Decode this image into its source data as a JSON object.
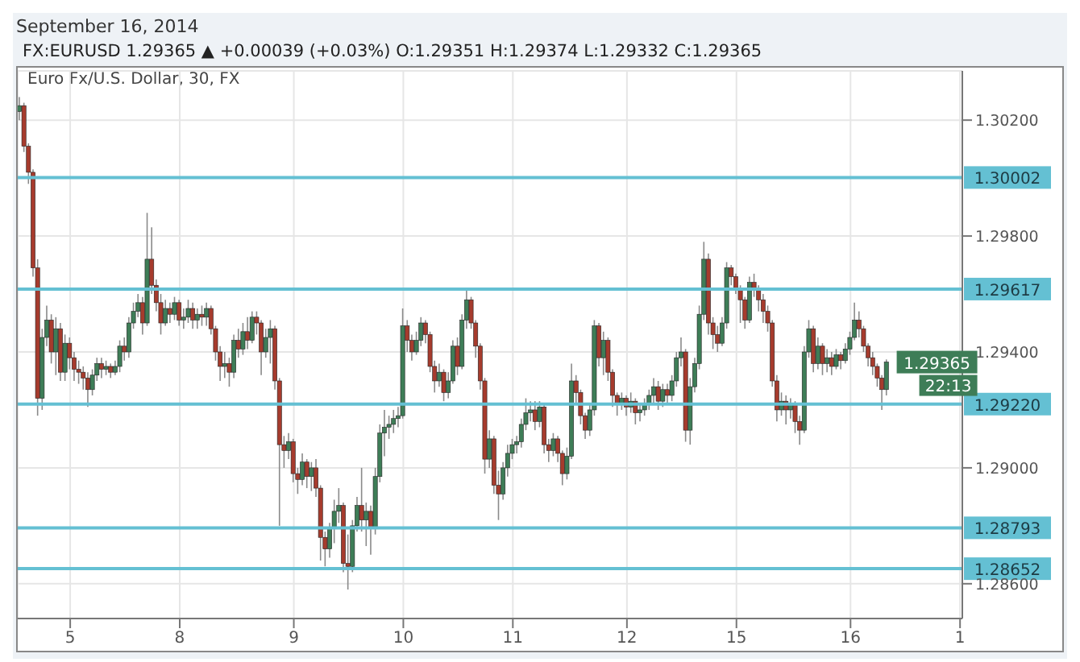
{
  "chart_data": {
    "type": "candlestick",
    "title": "Euro Fx/U.S. Dollar, 30, FX",
    "subtitle": "FX:EURUSD 1.29365 ▲ +0.00039 (+0.03%) O:1.29351 H:1.29374 L:1.29332 C:1.29365",
    "annotations": [
      "September 16, 2014",
      "1.29365",
      "22:13"
    ],
    "colors": [
      "#3e7d57",
      "#a63b2d",
      "#a63b2d",
      "#a63b2d",
      "#a63b2d",
      "#3e7d57",
      "#3e7d57",
      "#a63b2d",
      "#3e7d57",
      "#a63b2d",
      "#3e7d57",
      "#a63b2d",
      "#a63b2d",
      "#a63b2d",
      "#a63b2d",
      "#a63b2d",
      "#3e7d57",
      "#3e7d57",
      "#a63b2d",
      "#3e7d57",
      "#a63b2d",
      "#3e7d57",
      "#3e7d57",
      "#a63b2d",
      "#3e7d57",
      "#3e7d57",
      "#3e7d57",
      "#a63b2d",
      "#3e7d57",
      "#a63b2d",
      "#a63b2d",
      "#a63b2d",
      "#3e7d57",
      "#a63b2d",
      "#3e7d57",
      "#a63b2d",
      "#3e7d57",
      "#3e7d57",
      "#a63b2d",
      "#3e7d57",
      "#a63b2d",
      "#3e7d57",
      "#a63b2d",
      "#a63b2d",
      "#a63b2d",
      "#3e7d57",
      "#a63b2d",
      "#3e7d57",
      "#a63b2d",
      "#3e7d57",
      "#a63b2d",
      "#3e7d57",
      "#a63b2d",
      "#a63b2d",
      "#3e7d57",
      "#3e7d57",
      "#a63b2d",
      "#a63b2d",
      "#a63b2d",
      "#3e7d57",
      "#a63b2d",
      "#a63b2d",
      "#3e7d57",
      "#a63b2d",
      "#3e7d57",
      "#a63b2d",
      "#a63b2d",
      "#a63b2d",
      "#3e7d57",
      "#3e7d57",
      "#3e7d57",
      "#a63b2d",
      "#a63b2d",
      "#3e7d57",
      "#3e7d57",
      "#a63b2d",
      "#3e7d57",
      "#a63b2d",
      "#3e7d57",
      "#3e7d57",
      "#3e7d57",
      "#3e7d57",
      "#3e7d57",
      "#3e7d57",
      "#3e7d57",
      "#a63b2d",
      "#a63b2d",
      "#3e7d57",
      "#3e7d57",
      "#a63b2d",
      "#a63b2d",
      "#a63b2d",
      "#3e7d57",
      "#a63b2d",
      "#3e7d57",
      "#3e7d57",
      "#a63b2d",
      "#3e7d57",
      "#3e7d57",
      "#a63b2d",
      "#a63b2d",
      "#a63b2d",
      "#a63b2d",
      "#3e7d57",
      "#a63b2d",
      "#a63b2d",
      "#3e7d57",
      "#3e7d57",
      "#3e7d57",
      "#3e7d57",
      "#3e7d57",
      "#3e7d57",
      "#3e7d57",
      "#a63b2d",
      "#3e7d57",
      "#a63b2d",
      "#a63b2d",
      "#3e7d57",
      "#a63b2d",
      "#a63b2d",
      "#3e7d57",
      "#3e7d57",
      "#a63b2d",
      "#a63b2d",
      "#a63b2d",
      "#3e7d57",
      "#3e7d57",
      "#a63b2d",
      "#3e7d57",
      "#a63b2d",
      "#a63b2d",
      "#a63b2d",
      "#3e7d57",
      "#a63b2d",
      "#3e7d57",
      "#a63b2d",
      "#3e7d57",
      "#3e7d57",
      "#3e7d57",
      "#3e7d57",
      "#a63b2d",
      "#3e7d57",
      "#a63b2d",
      "#3e7d57",
      "#3e7d57",
      "#3e7d57",
      "#a63b2d",
      "#3e7d57",
      "#3e7d57",
      "#3e7d57",
      "#3e7d57",
      "#a63b2d",
      "#a63b2d",
      "#a63b2d",
      "#3e7d57",
      "#3e7d57",
      "#a63b2d",
      "#a63b2d",
      "#a63b2d",
      "#a63b2d",
      "#3e7d57",
      "#a63b2d",
      "#a63b2d",
      "#a63b2d",
      "#a63b2d",
      "#a63b2d",
      "#a63b2d",
      "#3e7d57",
      "#a63b2d",
      "#3e7d57",
      "#a63b2d",
      "#a63b2d",
      "#3e7d57",
      "#3e7d57",
      "#a63b2d",
      "#3e7d57",
      "#a63b2d",
      "#3e7d57",
      "#a63b2d",
      "#3e7d57",
      "#a63b2d",
      "#3e7d57",
      "#3e7d57",
      "#3e7d57",
      "#a63b2d",
      "#a63b2d",
      "#a63b2d",
      "#a63b2d",
      "#a63b2d",
      "#a63b2d",
      "#3e7d57",
      null,
      null,
      null,
      null,
      null,
      null,
      null,
      null,
      null,
      null,
      null,
      null,
      null,
      null,
      null,
      null
    ],
    "categories": [
      null,
      null,
      null,
      null,
      null,
      null,
      null,
      null,
      null,
      null,
      null,
      "5",
      null,
      null,
      null,
      null,
      null,
      null,
      null,
      null,
      null,
      null,
      null,
      null,
      null,
      null,
      null,
      null,
      null,
      null,
      null,
      null,
      null,
      null,
      null,
      "8",
      null,
      null,
      null,
      null,
      null,
      null,
      null,
      null,
      null,
      null,
      null,
      null,
      null,
      null,
      null,
      null,
      null,
      null,
      null,
      null,
      null,
      null,
      null,
      null,
      "9",
      null,
      null,
      null,
      null,
      null,
      null,
      null,
      null,
      null,
      null,
      null,
      null,
      null,
      null,
      null,
      null,
      null,
      null,
      null,
      null,
      null,
      null,
      null,
      "10",
      null,
      null,
      null,
      null,
      null,
      null,
      null,
      null,
      null,
      null,
      null,
      null,
      null,
      null,
      null,
      null,
      null,
      null,
      null,
      null,
      null,
      null,
      null,
      "11",
      null,
      null,
      null,
      null,
      null,
      null,
      null,
      null,
      null,
      null,
      null,
      null,
      null,
      null,
      null,
      null,
      null,
      null,
      null,
      null,
      null,
      null,
      null,
      null,
      "12",
      null,
      null,
      null,
      null,
      null,
      null,
      null,
      null,
      null,
      null,
      null,
      null,
      null,
      null,
      null,
      null,
      null,
      null,
      null,
      null,
      null,
      null,
      null,
      "15",
      null,
      null,
      null,
      null,
      null,
      null,
      null,
      null,
      null,
      null,
      null,
      null,
      null,
      null,
      null,
      null,
      null,
      null,
      null,
      null,
      null,
      null,
      null,
      null,
      "16",
      null,
      null,
      null,
      null,
      null,
      null,
      null,
      null,
      null,
      null,
      null,
      null,
      null,
      null,
      null,
      null,
      null,
      null,
      null,
      null,
      null,
      null,
      null,
      "1"
    ],
    "ohlc": [
      [
        1.3023,
        1.3028,
        1.302,
        1.3025
      ],
      [
        1.3025,
        1.3026,
        1.3009,
        1.3011
      ],
      [
        1.3011,
        1.3012,
        1.2998,
        1.3002
      ],
      [
        1.3002,
        1.3003,
        1.2966,
        1.2969
      ],
      [
        1.2969,
        1.2972,
        1.2918,
        1.2924
      ],
      [
        1.2924,
        1.2948,
        1.292,
        1.2945
      ],
      [
        1.2945,
        1.2956,
        1.2942,
        1.2951
      ],
      [
        1.2951,
        1.2953,
        1.2936,
        1.294
      ],
      [
        1.294,
        1.2952,
        1.2932,
        1.2948
      ],
      [
        1.2948,
        1.295,
        1.293,
        1.2933
      ],
      [
        1.2933,
        1.2946,
        1.293,
        1.2943
      ],
      [
        1.2943,
        1.2945,
        1.2934,
        1.2938
      ],
      [
        1.2938,
        1.294,
        1.293,
        1.2934
      ],
      [
        1.2934,
        1.2937,
        1.2929,
        1.2933
      ],
      [
        1.2933,
        1.2935,
        1.2927,
        1.2931
      ],
      [
        1.2931,
        1.2933,
        1.2921,
        1.2927
      ],
      [
        1.2927,
        1.2934,
        1.2925,
        1.2932
      ],
      [
        1.2932,
        1.2938,
        1.293,
        1.2936
      ],
      [
        1.2936,
        1.2938,
        1.2931,
        1.2934
      ],
      [
        1.2934,
        1.2937,
        1.2932,
        1.2935
      ],
      [
        1.2935,
        1.2936,
        1.2931,
        1.2933
      ],
      [
        1.2933,
        1.2937,
        1.2932,
        1.2935
      ],
      [
        1.2935,
        1.2944,
        1.2933,
        1.2942
      ],
      [
        1.2942,
        1.2945,
        1.2937,
        1.294
      ],
      [
        1.294,
        1.2952,
        1.2938,
        1.295
      ],
      [
        1.295,
        1.2957,
        1.2948,
        1.2954
      ],
      [
        1.2954,
        1.296,
        1.2952,
        1.2957
      ],
      [
        1.2957,
        1.2959,
        1.2946,
        1.295
      ],
      [
        1.295,
        1.2988,
        1.2949,
        1.2972
      ],
      [
        1.2972,
        1.2983,
        1.296,
        1.2963
      ],
      [
        1.2963,
        1.2965,
        1.2954,
        1.2957
      ],
      [
        1.2957,
        1.296,
        1.2946,
        1.295
      ],
      [
        1.295,
        1.2958,
        1.2949,
        1.2955
      ],
      [
        1.2955,
        1.2957,
        1.295,
        1.2953
      ],
      [
        1.2953,
        1.2959,
        1.2951,
        1.2957
      ],
      [
        1.2957,
        1.2958,
        1.2949,
        1.2951
      ],
      [
        1.2951,
        1.2955,
        1.2948,
        1.2952
      ],
      [
        1.2952,
        1.2958,
        1.295,
        1.2955
      ],
      [
        1.2955,
        1.2957,
        1.2948,
        1.2951
      ],
      [
        1.2951,
        1.2955,
        1.2948,
        1.2953
      ],
      [
        1.2953,
        1.2956,
        1.2949,
        1.2952
      ],
      [
        1.2952,
        1.2957,
        1.2949,
        1.2955
      ],
      [
        1.2955,
        1.2956,
        1.2946,
        1.2948
      ],
      [
        1.2948,
        1.2949,
        1.2937,
        1.294
      ],
      [
        1.294,
        1.2942,
        1.293,
        1.2935
      ],
      [
        1.2935,
        1.294,
        1.2931,
        1.2936
      ],
      [
        1.2936,
        1.2938,
        1.2928,
        1.2933
      ],
      [
        1.2933,
        1.2946,
        1.2931,
        1.2944
      ],
      [
        1.2944,
        1.2948,
        1.2938,
        1.2941
      ],
      [
        1.2941,
        1.295,
        1.2939,
        1.2947
      ],
      [
        1.2947,
        1.2952,
        1.2941,
        1.2944
      ],
      [
        1.2944,
        1.2954,
        1.2943,
        1.2952
      ],
      [
        1.2952,
        1.2954,
        1.2946,
        1.295
      ],
      [
        1.295,
        1.2951,
        1.2932,
        1.294
      ],
      [
        1.294,
        1.2948,
        1.2938,
        1.2945
      ],
      [
        1.2945,
        1.2951,
        1.2936,
        1.2948
      ],
      [
        1.2948,
        1.2949,
        1.2927,
        1.293
      ],
      [
        1.293,
        1.2931,
        1.288,
        1.2908
      ],
      [
        1.2908,
        1.2911,
        1.29,
        1.2906
      ],
      [
        1.2906,
        1.2912,
        1.2903,
        1.2909
      ],
      [
        1.2909,
        1.291,
        1.2895,
        1.2898
      ],
      [
        1.2898,
        1.29,
        1.2891,
        1.2896
      ],
      [
        1.2896,
        1.2905,
        1.2894,
        1.2902
      ],
      [
        1.2902,
        1.2903,
        1.2893,
        1.2897
      ],
      [
        1.2897,
        1.2902,
        1.2892,
        1.29
      ],
      [
        1.29,
        1.2903,
        1.289,
        1.2893
      ],
      [
        1.2893,
        1.2894,
        1.2868,
        1.2876
      ],
      [
        1.2876,
        1.2878,
        1.2866,
        1.2872
      ],
      [
        1.2872,
        1.2881,
        1.2869,
        1.2879
      ],
      [
        1.2879,
        1.2889,
        1.2874,
        1.2885
      ],
      [
        1.2885,
        1.2893,
        1.2881,
        1.2887
      ],
      [
        1.2887,
        1.2888,
        1.2864,
        1.2867
      ],
      [
        1.2867,
        1.2877,
        1.2858,
        1.2866
      ],
      [
        1.2866,
        1.2882,
        1.2864,
        1.288
      ],
      [
        1.288,
        1.289,
        1.2878,
        1.2887
      ],
      [
        1.2887,
        1.29,
        1.2878,
        1.2882
      ],
      [
        1.2882,
        1.2888,
        1.2873,
        1.2885
      ],
      [
        1.2885,
        1.2887,
        1.287,
        1.2879
      ],
      [
        1.2879,
        1.29,
        1.2877,
        1.2897
      ],
      [
        1.2897,
        1.2915,
        1.2895,
        1.2912
      ],
      [
        1.2912,
        1.292,
        1.2904,
        1.2914
      ],
      [
        1.2914,
        1.2918,
        1.291,
        1.2915
      ],
      [
        1.2915,
        1.292,
        1.2912,
        1.2917
      ],
      [
        1.2917,
        1.2921,
        1.2914,
        1.2918
      ],
      [
        1.2918,
        1.2955,
        1.2917,
        1.2949
      ],
      [
        1.2949,
        1.2951,
        1.294,
        1.2944
      ],
      [
        1.2944,
        1.2946,
        1.2937,
        1.294
      ],
      [
        1.294,
        1.2947,
        1.2939,
        1.2944
      ],
      [
        1.2944,
        1.2952,
        1.2942,
        1.295
      ],
      [
        1.295,
        1.2951,
        1.2943,
        1.2946
      ],
      [
        1.2946,
        1.2947,
        1.2933,
        1.2935
      ],
      [
        1.2935,
        1.2937,
        1.2926,
        1.293
      ],
      [
        1.293,
        1.2936,
        1.2928,
        1.2933
      ],
      [
        1.2933,
        1.2934,
        1.2923,
        1.2926
      ],
      [
        1.2926,
        1.2933,
        1.2924,
        1.293
      ],
      [
        1.293,
        1.2944,
        1.2929,
        1.2942
      ],
      [
        1.2942,
        1.2945,
        1.2932,
        1.2935
      ],
      [
        1.2935,
        1.2953,
        1.2934,
        1.2951
      ],
      [
        1.2951,
        1.2962,
        1.2948,
        1.2958
      ],
      [
        1.2958,
        1.2959,
        1.2948,
        1.295
      ],
      [
        1.295,
        1.2951,
        1.2938,
        1.2942
      ],
      [
        1.2942,
        1.2943,
        1.2927,
        1.293
      ],
      [
        1.293,
        1.2931,
        1.2898,
        1.2903
      ],
      [
        1.2903,
        1.2913,
        1.29,
        1.291
      ],
      [
        1.291,
        1.2911,
        1.2891,
        1.2894
      ],
      [
        1.2894,
        1.2899,
        1.2882,
        1.2891
      ],
      [
        1.2891,
        1.2902,
        1.2889,
        1.29
      ],
      [
        1.29,
        1.2908,
        1.2897,
        1.2905
      ],
      [
        1.2905,
        1.291,
        1.2903,
        1.2908
      ],
      [
        1.2908,
        1.2911,
        1.2905,
        1.2909
      ],
      [
        1.2909,
        1.2917,
        1.2907,
        1.2915
      ],
      [
        1.2915,
        1.2924,
        1.2913,
        1.2919
      ],
      [
        1.2919,
        1.2923,
        1.2916,
        1.292
      ],
      [
        1.292,
        1.2923,
        1.2913,
        1.2916
      ],
      [
        1.2916,
        1.2923,
        1.2914,
        1.2921
      ],
      [
        1.2921,
        1.2922,
        1.2905,
        1.2908
      ],
      [
        1.2908,
        1.291,
        1.2902,
        1.2906
      ],
      [
        1.2906,
        1.2912,
        1.2904,
        1.291
      ],
      [
        1.291,
        1.2911,
        1.2902,
        1.2905
      ],
      [
        1.2905,
        1.2906,
        1.2894,
        1.2898
      ],
      [
        1.2898,
        1.2907,
        1.2896,
        1.2904
      ],
      [
        1.2904,
        1.2936,
        1.2903,
        1.293
      ],
      [
        1.293,
        1.2932,
        1.2922,
        1.2926
      ],
      [
        1.2926,
        1.2927,
        1.2915,
        1.2918
      ],
      [
        1.2918,
        1.2919,
        1.291,
        1.2913
      ],
      [
        1.2913,
        1.2922,
        1.2911,
        1.292
      ],
      [
        1.292,
        1.2951,
        1.2918,
        1.2949
      ],
      [
        1.2949,
        1.295,
        1.2935,
        1.2938
      ],
      [
        1.2938,
        1.2947,
        1.2932,
        1.2944
      ],
      [
        1.2944,
        1.2945,
        1.293,
        1.2933
      ],
      [
        1.2933,
        1.2934,
        1.2921,
        1.2925
      ],
      [
        1.2925,
        1.2926,
        1.2918,
        1.2922
      ],
      [
        1.2922,
        1.2926,
        1.292,
        1.2924
      ],
      [
        1.2924,
        1.2925,
        1.2918,
        1.2921
      ],
      [
        1.2921,
        1.2926,
        1.2919,
        1.2923
      ],
      [
        1.2923,
        1.2924,
        1.2915,
        1.2919
      ],
      [
        1.2919,
        1.2922,
        1.2916,
        1.292
      ],
      [
        1.292,
        1.2924,
        1.2918,
        1.2922
      ],
      [
        1.2922,
        1.2927,
        1.292,
        1.2925
      ],
      [
        1.2925,
        1.2931,
        1.2922,
        1.2928
      ],
      [
        1.2928,
        1.293,
        1.292,
        1.2923
      ],
      [
        1.2923,
        1.2929,
        1.2921,
        1.2927
      ],
      [
        1.2927,
        1.2929,
        1.2922,
        1.2925
      ],
      [
        1.2925,
        1.2932,
        1.2923,
        1.293
      ],
      [
        1.293,
        1.294,
        1.2928,
        1.2938
      ],
      [
        1.2938,
        1.2945,
        1.2935,
        1.294
      ],
      [
        1.294,
        1.2941,
        1.2909,
        1.2913
      ],
      [
        1.2913,
        1.2931,
        1.2908,
        1.2928
      ],
      [
        1.2928,
        1.2938,
        1.2926,
        1.2936
      ],
      [
        1.2936,
        1.2956,
        1.2934,
        1.2953
      ],
      [
        1.2953,
        1.2978,
        1.2951,
        1.2972
      ],
      [
        1.2972,
        1.2974,
        1.2946,
        1.295
      ],
      [
        1.295,
        1.2952,
        1.2941,
        1.2946
      ],
      [
        1.2946,
        1.2949,
        1.294,
        1.2943
      ],
      [
        1.2943,
        1.2952,
        1.2942,
        1.295
      ],
      [
        1.295,
        1.2971,
        1.2948,
        1.2969
      ],
      [
        1.2969,
        1.297,
        1.2963,
        1.2966
      ],
      [
        1.2966,
        1.2967,
        1.296,
        1.2962
      ],
      [
        1.2962,
        1.2963,
        1.295,
        1.2958
      ],
      [
        1.2958,
        1.2959,
        1.2948,
        1.2951
      ],
      [
        1.2951,
        1.2966,
        1.295,
        1.2964
      ],
      [
        1.2964,
        1.2967,
        1.2959,
        1.2962
      ],
      [
        1.2962,
        1.2963,
        1.2954,
        1.2958
      ],
      [
        1.2958,
        1.296,
        1.295,
        1.2954
      ],
      [
        1.2954,
        1.2956,
        1.2947,
        1.295
      ],
      [
        1.295,
        1.2951,
        1.2928,
        1.293
      ],
      [
        1.293,
        1.2932,
        1.2916,
        1.292
      ],
      [
        1.292,
        1.2926,
        1.2918,
        1.2923
      ],
      [
        1.2923,
        1.2925,
        1.2915,
        1.292
      ],
      [
        1.292,
        1.2924,
        1.2917,
        1.2922
      ],
      [
        1.2922,
        1.2923,
        1.2912,
        1.2916
      ],
      [
        1.2916,
        1.2918,
        1.2908,
        1.2913
      ],
      [
        1.2913,
        1.2942,
        1.2912,
        1.294
      ],
      [
        1.294,
        1.2951,
        1.2938,
        1.2948
      ],
      [
        1.2948,
        1.2949,
        1.2933,
        1.2936
      ],
      [
        1.2936,
        1.2945,
        1.2934,
        1.2942
      ],
      [
        1.2942,
        1.2943,
        1.2932,
        1.2936
      ],
      [
        1.2936,
        1.2941,
        1.2933,
        1.2938
      ],
      [
        1.2938,
        1.294,
        1.2932,
        1.2935
      ],
      [
        1.2935,
        1.2941,
        1.2934,
        1.2939
      ],
      [
        1.2939,
        1.294,
        1.2934,
        1.2937
      ],
      [
        1.2937,
        1.2943,
        1.2936,
        1.2941
      ],
      [
        1.2941,
        1.2947,
        1.2939,
        1.2945
      ],
      [
        1.2945,
        1.2957,
        1.2944,
        1.2951
      ],
      [
        1.2951,
        1.2954,
        1.2945,
        1.2948
      ],
      [
        1.2948,
        1.2949,
        1.294,
        1.2942
      ],
      [
        1.2942,
        1.2943,
        1.2935,
        1.2938
      ],
      [
        1.2938,
        1.294,
        1.2932,
        1.2935
      ],
      [
        1.2935,
        1.2936,
        1.2928,
        1.2931
      ],
      [
        1.2931,
        1.2932,
        1.292,
        1.2927
      ],
      [
        1.2927,
        1.29374,
        1.2925,
        1.29365
      ],
      null,
      null,
      null,
      null,
      null,
      null,
      null,
      null,
      null,
      null,
      null,
      null,
      null,
      null,
      null,
      null
    ],
    "ylim": [
      1.2848,
      1.3037
    ],
    "yticks": [
      {
        "value": 1.286,
        "label": "1.28600"
      },
      {
        "value": 1.29,
        "label": "1.29000"
      },
      {
        "value": 1.294,
        "label": "1.29400"
      },
      {
        "value": 1.298,
        "label": "1.29800"
      },
      {
        "value": 1.302,
        "label": "1.30200"
      }
    ],
    "grid": true,
    "ref_lines": [
      {
        "axis": "y",
        "value": 1.30002,
        "label": "1.30002",
        "color": "#64c0d3"
      },
      {
        "axis": "y",
        "value": 1.29617,
        "label": "1.29617",
        "color": "#64c0d3"
      },
      {
        "axis": "y",
        "value": 1.2922,
        "label": "1.29220",
        "color": "#64c0d3"
      },
      {
        "axis": "y",
        "value": 1.28793,
        "label": "1.28793",
        "color": "#64c0d3"
      },
      {
        "axis": "y",
        "value": 1.28652,
        "label": "1.28652",
        "color": "#64c0d3"
      }
    ]
  }
}
